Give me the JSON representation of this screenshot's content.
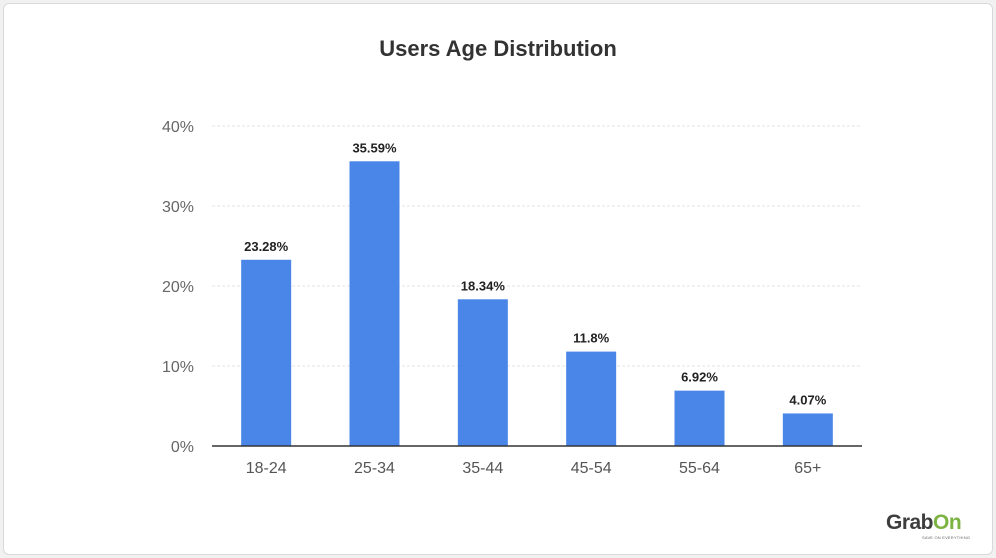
{
  "chart_data": {
    "type": "bar",
    "title": "Users Age Distribution",
    "xlabel": "",
    "ylabel": "",
    "categories": [
      "18-24",
      "25-34",
      "35-44",
      "45-54",
      "55-64",
      "65+"
    ],
    "values": [
      23.28,
      35.59,
      18.34,
      11.8,
      6.92,
      4.07
    ],
    "data_labels": [
      "23.28%",
      "35.59%",
      "18.34%",
      "11.8%",
      "6.92%",
      "4.07%"
    ],
    "ylim": [
      0,
      40
    ],
    "yticks": [
      0,
      10,
      20,
      30,
      40
    ],
    "ytick_labels": [
      "0%",
      "10%",
      "20%",
      "30%",
      "40%"
    ],
    "grid": true,
    "legend": "none",
    "bar_color": "#4a86e8"
  },
  "brand": {
    "grab": "Grab",
    "on": "On",
    "tagline": "SAVE ON EVERYTHING",
    "accent_color": "#7cb342"
  }
}
